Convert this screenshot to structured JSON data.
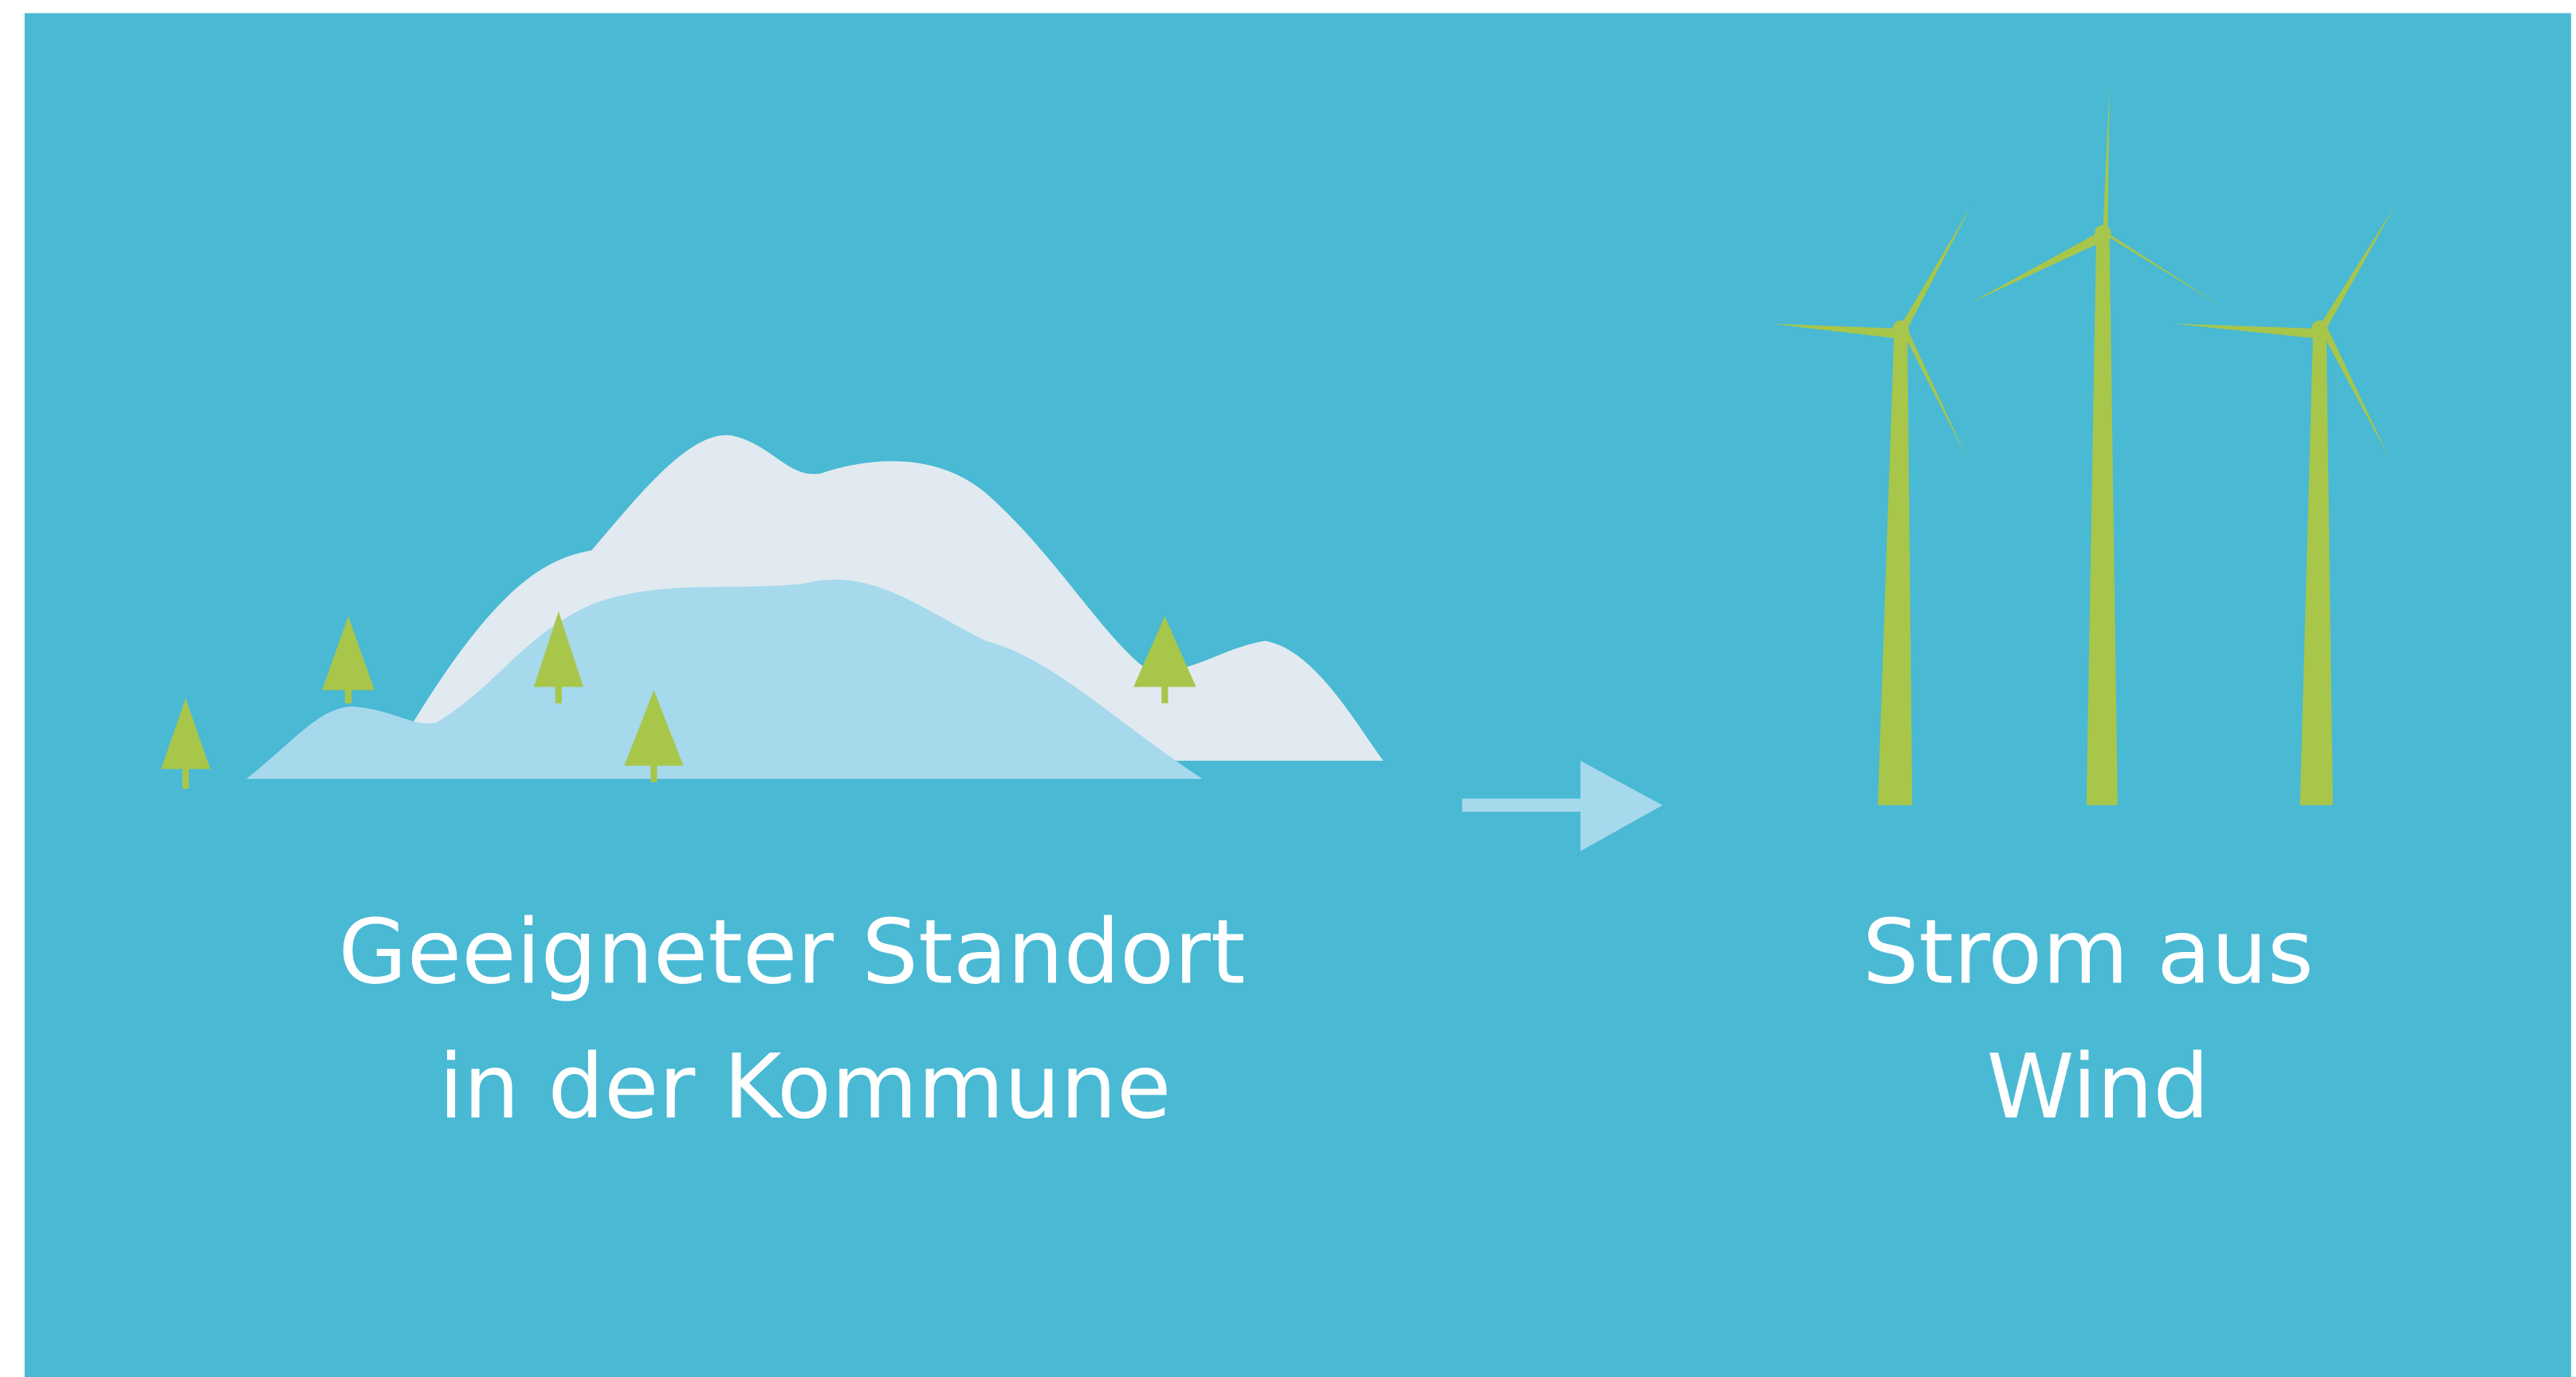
{
  "left": {
    "label": [
      "Geeigneter Standort",
      "in der Kommune"
    ]
  },
  "right": {
    "label": [
      "Strom aus",
      "Wind"
    ]
  }
}
